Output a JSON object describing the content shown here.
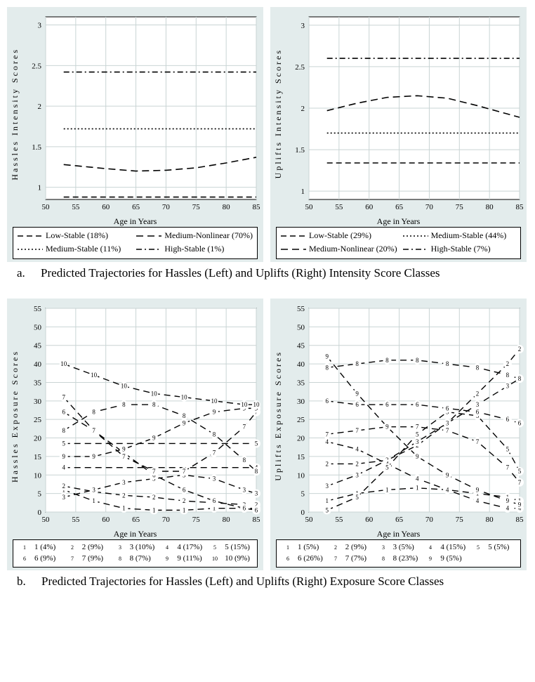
{
  "figure_a": {
    "caption_letter": "a.",
    "caption_text": "Predicted Trajectories for Hassles (Left) and Uplifts (Right) Intensity Score Classes",
    "left": {
      "ylabel": "Hassles Intensity Scores",
      "xlabel": "Age in Years",
      "background": "#e3ecec",
      "plot_bg": "#ffffff",
      "grid_color": "#c9d4d4",
      "xlim": [
        50,
        85
      ],
      "xticks": [
        50,
        55,
        60,
        65,
        70,
        75,
        80,
        85
      ],
      "ylim": [
        0.85,
        3.1
      ],
      "yticks": [
        1,
        1.5,
        2,
        2.5,
        3
      ],
      "series": [
        {
          "label": "Low-Stable (18%)",
          "style": "solid",
          "x": [
            53,
            85
          ],
          "y": [
            0.88,
            0.88
          ]
        },
        {
          "label": "Medium-Nonlinear (70%)",
          "style": "longdash",
          "x": [
            53,
            60,
            65,
            70,
            75,
            80,
            85
          ],
          "y": [
            1.28,
            1.23,
            1.2,
            1.21,
            1.24,
            1.3,
            1.37
          ]
        },
        {
          "label": "Medium-Stable (11%)",
          "style": "shortdash",
          "x": [
            53,
            85
          ],
          "y": [
            1.72,
            1.72
          ]
        },
        {
          "label": "High-Stable (1%)",
          "style": "dashdot",
          "x": [
            53,
            85
          ],
          "y": [
            2.42,
            2.42
          ]
        }
      ]
    },
    "right": {
      "ylabel": "Uplifts Intensity Scores",
      "xlabel": "Age in Years",
      "background": "#e3ecec",
      "plot_bg": "#ffffff",
      "grid_color": "#c9d4d4",
      "xlim": [
        50,
        85
      ],
      "xticks": [
        50,
        55,
        60,
        65,
        70,
        75,
        80,
        85
      ],
      "ylim": [
        0.9,
        3.1
      ],
      "yticks": [
        1,
        1.5,
        2,
        2.5,
        3
      ],
      "series": [
        {
          "label": "Low-Stable (29%)",
          "style": "solid",
          "x": [
            53,
            85
          ],
          "y": [
            1.34,
            1.34
          ]
        },
        {
          "label": "Medium-Stable (44%)",
          "style": "shortdash",
          "x": [
            53,
            85
          ],
          "y": [
            1.7,
            1.7
          ]
        },
        {
          "label": "Medium-Nonlinear (20%)",
          "style": "longdash",
          "x": [
            53,
            58,
            63,
            68,
            73,
            78,
            83,
            85
          ],
          "y": [
            1.97,
            2.06,
            2.13,
            2.15,
            2.12,
            2.03,
            1.93,
            1.89
          ]
        },
        {
          "label": "High-Stable (7%)",
          "style": "dashdot",
          "x": [
            53,
            85
          ],
          "y": [
            2.6,
            2.6
          ]
        }
      ]
    }
  },
  "figure_b": {
    "caption_letter": "b.",
    "caption_text": "Predicted Trajectories for Hassles (Left) and Uplifts (Right) Exposure Score Classes",
    "left": {
      "ylabel": "Hassles Exposure Scores",
      "xlabel": "Age in Years",
      "background": "#e3ecec",
      "plot_bg": "#ffffff",
      "grid_color": "#c9d4d4",
      "xlim": [
        50,
        85
      ],
      "xticks": [
        50,
        55,
        60,
        65,
        70,
        75,
        80,
        85
      ],
      "ylim": [
        0,
        55
      ],
      "yticks": [
        0,
        5,
        10,
        15,
        20,
        25,
        30,
        35,
        40,
        45,
        50,
        55
      ],
      "series": [
        {
          "num": "1",
          "label": "1 (4%)",
          "x": [
            53,
            58,
            63,
            68,
            73,
            78,
            83,
            85
          ],
          "y": [
            6,
            3,
            1,
            0.5,
            0.5,
            1,
            1,
            1
          ]
        },
        {
          "num": "2",
          "label": "2 (9%)",
          "x": [
            53,
            58,
            63,
            68,
            73,
            78,
            83,
            85
          ],
          "y": [
            7,
            5.5,
            4.5,
            4,
            3,
            2.5,
            2,
            2
          ]
        },
        {
          "num": "3",
          "label": "3 (10%)",
          "x": [
            53,
            58,
            63,
            68,
            73,
            78,
            83,
            85
          ],
          "y": [
            4,
            6,
            8,
            9,
            10,
            9,
            6,
            5
          ]
        },
        {
          "num": "4",
          "label": "4 (17%)",
          "x": [
            53,
            85
          ],
          "y": [
            12,
            12
          ]
        },
        {
          "num": "5",
          "label": "5 (15%)",
          "x": [
            53,
            85
          ],
          "y": [
            18.5,
            18.5
          ]
        },
        {
          "num": "6",
          "label": "6 (9%)",
          "x": [
            53,
            58,
            63,
            68,
            73,
            78,
            83,
            85
          ],
          "y": [
            27,
            22,
            16,
            10,
            6,
            3,
            1,
            0.5
          ]
        },
        {
          "num": "7",
          "label": "7 (9%)",
          "x": [
            53,
            58,
            63,
            68,
            73,
            78,
            83,
            85
          ],
          "y": [
            31,
            22,
            15,
            11,
            11,
            16,
            23,
            27
          ]
        },
        {
          "num": "8",
          "label": "8 (7%)",
          "x": [
            53,
            58,
            63,
            68,
            73,
            78,
            83,
            85
          ],
          "y": [
            22,
            27,
            29,
            29,
            26,
            21,
            14,
            11
          ]
        },
        {
          "num": "9",
          "label": "9 (11%)",
          "x": [
            53,
            58,
            63,
            68,
            73,
            78,
            83,
            85
          ],
          "y": [
            15,
            15,
            17,
            20,
            24,
            27,
            28,
            28
          ]
        },
        {
          "num": "10",
          "label": "10 (9%)",
          "x": [
            53,
            58,
            63,
            68,
            73,
            78,
            83,
            85
          ],
          "y": [
            40,
            37,
            34,
            32,
            31,
            30,
            29,
            29
          ]
        }
      ]
    },
    "right": {
      "ylabel": "Uplifts Exposure Scores",
      "xlabel": "Age in Years",
      "background": "#e3ecec",
      "plot_bg": "#ffffff",
      "grid_color": "#c9d4d4",
      "xlim": [
        50,
        85
      ],
      "xticks": [
        50,
        55,
        60,
        65,
        70,
        75,
        80,
        85
      ],
      "ylim": [
        0,
        55
      ],
      "yticks": [
        0,
        5,
        10,
        15,
        20,
        25,
        30,
        35,
        40,
        45,
        50,
        55
      ],
      "series": [
        {
          "num": "1",
          "label": "1 (5%)",
          "x": [
            53,
            58,
            63,
            68,
            73,
            78,
            83,
            85
          ],
          "y": [
            3,
            5,
            6,
            6.5,
            6,
            5,
            4,
            3
          ]
        },
        {
          "num": "2",
          "label": "2 (9%)",
          "x": [
            53,
            58,
            63,
            68,
            73,
            78,
            83,
            85
          ],
          "y": [
            13,
            13,
            14,
            18,
            24,
            32,
            40,
            44
          ]
        },
        {
          "num": "3",
          "label": "3 (5%)",
          "x": [
            53,
            58,
            63,
            68,
            73,
            78,
            83,
            85
          ],
          "y": [
            7,
            10,
            14,
            19,
            24,
            29,
            34,
            36
          ]
        },
        {
          "num": "4",
          "label": "4 (15%)",
          "x": [
            53,
            58,
            63,
            68,
            73,
            78,
            83,
            85
          ],
          "y": [
            19,
            17,
            13,
            9,
            6,
            3,
            1,
            1
          ]
        },
        {
          "num": "5",
          "label": "5 (5%)",
          "x": [
            53,
            58,
            63,
            68,
            73,
            78,
            83,
            85
          ],
          "y": [
            0.5,
            4,
            12,
            21,
            27,
            26,
            17,
            11
          ]
        },
        {
          "num": "6",
          "label": "6 (26%)",
          "x": [
            53,
            58,
            63,
            68,
            73,
            78,
            83,
            85
          ],
          "y": [
            30,
            29,
            29,
            29,
            28,
            27,
            25,
            24
          ]
        },
        {
          "num": "7",
          "label": "7 (7%)",
          "x": [
            53,
            58,
            63,
            68,
            73,
            78,
            83,
            85
          ],
          "y": [
            21,
            22,
            23,
            23,
            22,
            19,
            12,
            8
          ]
        },
        {
          "num": "8",
          "label": "8 (23%)",
          "x": [
            53,
            58,
            63,
            68,
            73,
            78,
            83,
            85
          ],
          "y": [
            39,
            40,
            41,
            41,
            40,
            39,
            37,
            36
          ]
        },
        {
          "num": "9",
          "label": "9 (5%)",
          "x": [
            53,
            58,
            63,
            68,
            73,
            78,
            83,
            85
          ],
          "y": [
            42,
            32,
            23,
            15,
            10,
            6,
            3,
            2
          ]
        }
      ]
    }
  },
  "colors": {
    "line": "#000000",
    "panel_bg": "#e3ecec",
    "plot_bg": "#ffffff"
  },
  "dash": {
    "solid": "",
    "longdash": "10 6",
    "shortdash": "2 3",
    "dashdot": "8 4 2 4"
  },
  "tick_fontsize": 11,
  "label_fontsize": 12
}
